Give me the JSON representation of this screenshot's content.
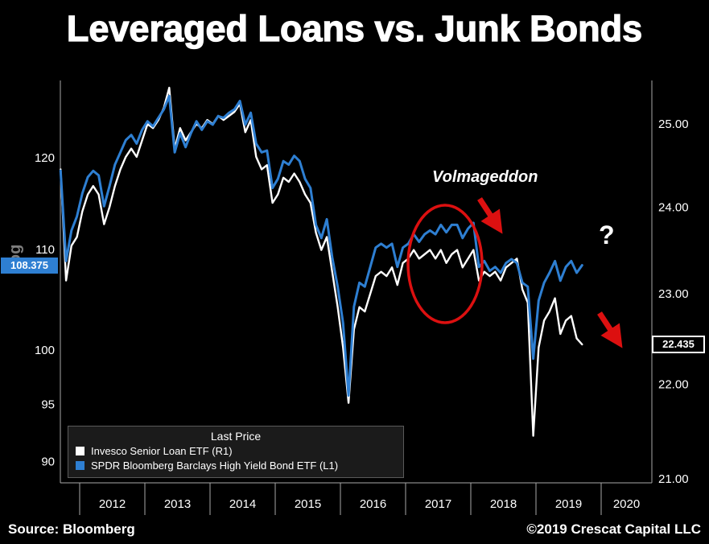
{
  "chart_data": {
    "type": "line",
    "title": "Leveraged Loans vs. Junk Bonds",
    "x_start": 2011.708,
    "x_step": 0.083333,
    "x_ticks": {
      "years": [
        2012,
        2013,
        2014,
        2015,
        2016,
        2017,
        2018,
        2019,
        2020
      ],
      "labels": [
        "2012",
        "2013",
        "2014",
        "2015",
        "2016",
        "2017",
        "2018",
        "2019",
        "2020"
      ]
    },
    "left_axis": {
      "scale": "log",
      "range": [
        88.2,
        128.4
      ],
      "ticks": [
        120,
        110,
        100,
        95,
        90
      ],
      "tick_labels": [
        "120",
        "110",
        "100",
        "95",
        "90"
      ],
      "last_price": 108.375,
      "last_price_label": "108.375",
      "series": "SPDR Bloomberg Barclays High Yield Bond ETF (L1)"
    },
    "right_axis": {
      "scale": "log",
      "range": [
        20.96,
        25.47
      ],
      "ticks": [
        25,
        24,
        23,
        22,
        21
      ],
      "tick_labels": [
        "25.00",
        "24.00",
        "23.00",
        "22.00",
        "21.00"
      ],
      "last_price": 22.435,
      "last_price_label": "22.435",
      "series": "Invesco Senior Loan ETF (R1)"
    },
    "series": [
      {
        "name": "Invesco Senior Loan ETF",
        "axis": "right",
        "color": "#ffffff",
        "values": [
          24.45,
          23.15,
          23.55,
          23.65,
          23.95,
          24.15,
          24.25,
          24.15,
          23.8,
          24,
          24.25,
          24.45,
          24.6,
          24.7,
          24.6,
          24.8,
          25,
          24.95,
          25.05,
          25.2,
          25.45,
          24.7,
          24.95,
          24.8,
          24.9,
          25,
          24.95,
          25.05,
          25,
          25.1,
          25.05,
          25.1,
          25.15,
          25.25,
          24.9,
          25.05,
          24.6,
          24.45,
          24.5,
          24.05,
          24.15,
          24.35,
          24.3,
          24.4,
          24.3,
          24.15,
          24.05,
          23.7,
          23.5,
          23.65,
          23.25,
          22.85,
          22.4,
          21.8,
          22.6,
          22.85,
          22.8,
          23,
          23.2,
          23.25,
          23.2,
          23.3,
          23.1,
          23.35,
          23.4,
          23.5,
          23.4,
          23.45,
          23.5,
          23.4,
          23.5,
          23.35,
          23.45,
          23.5,
          23.3,
          23.4,
          23.5,
          23.15,
          23.25,
          23.2,
          23.25,
          23.15,
          23.3,
          23.35,
          23.4,
          23.05,
          22.9,
          21.45,
          22.4,
          22.7,
          22.8,
          22.95,
          22.55,
          22.7,
          22.75,
          22.5,
          22.435
        ]
      },
      {
        "name": "SPDR Bloomberg Barclays High Yield Bond ETF",
        "axis": "left",
        "color": "#2e7fd2",
        "values": [
          118.5,
          108.8,
          112,
          113.5,
          116,
          117.8,
          118.5,
          118,
          114.6,
          116.8,
          119.2,
          120.6,
          122,
          122.6,
          121.6,
          123.2,
          124.2,
          123.6,
          124.6,
          125.6,
          127.2,
          120.6,
          122.8,
          121.2,
          122.8,
          124.2,
          123.2,
          124.2,
          123.8,
          124.8,
          124.6,
          125.2,
          125.6,
          126.6,
          123.8,
          125.2,
          121.6,
          120.6,
          120.8,
          116.6,
          117.6,
          119.6,
          119.2,
          120.2,
          119.6,
          117.6,
          116.6,
          112.6,
          111.2,
          113.2,
          109.2,
          106.2,
          102.6,
          95.8,
          104.2,
          106.6,
          106.2,
          108.2,
          110.2,
          110.6,
          110.2,
          110.6,
          108.2,
          110.2,
          110.6,
          111.6,
          110.8,
          111.6,
          112,
          111.6,
          112.6,
          111.8,
          112.6,
          112.6,
          111.2,
          112.2,
          112.8,
          108.2,
          108.8,
          107.8,
          108.2,
          107.6,
          108.6,
          109,
          108.6,
          106.6,
          106.2,
          99.2,
          104.8,
          106.6,
          107.6,
          108.8,
          106.8,
          108.2,
          108.8,
          107.6,
          108.375
        ]
      }
    ]
  },
  "axis_scale_label": "Log",
  "legend": {
    "title": "Last Price",
    "items": [
      {
        "label": "Invesco Senior Loan ETF  (R1)",
        "color": "#ffffff"
      },
      {
        "label": "SPDR Bloomberg Barclays High Yield Bond ETF  (L1)",
        "color": "#2e7fd2"
      }
    ]
  },
  "annotations": {
    "volmageddon": "Volmageddon",
    "question_mark": "?"
  },
  "footer": {
    "source": "Source: Bloomberg",
    "copyright": "©2019 Crescat Capital LLC"
  },
  "colors": {
    "background": "#000000",
    "accent_blue": "#2e7fd2",
    "annotation_red": "#dc1010",
    "axis_line": "#a8a8a8",
    "text": "#ffffff"
  }
}
